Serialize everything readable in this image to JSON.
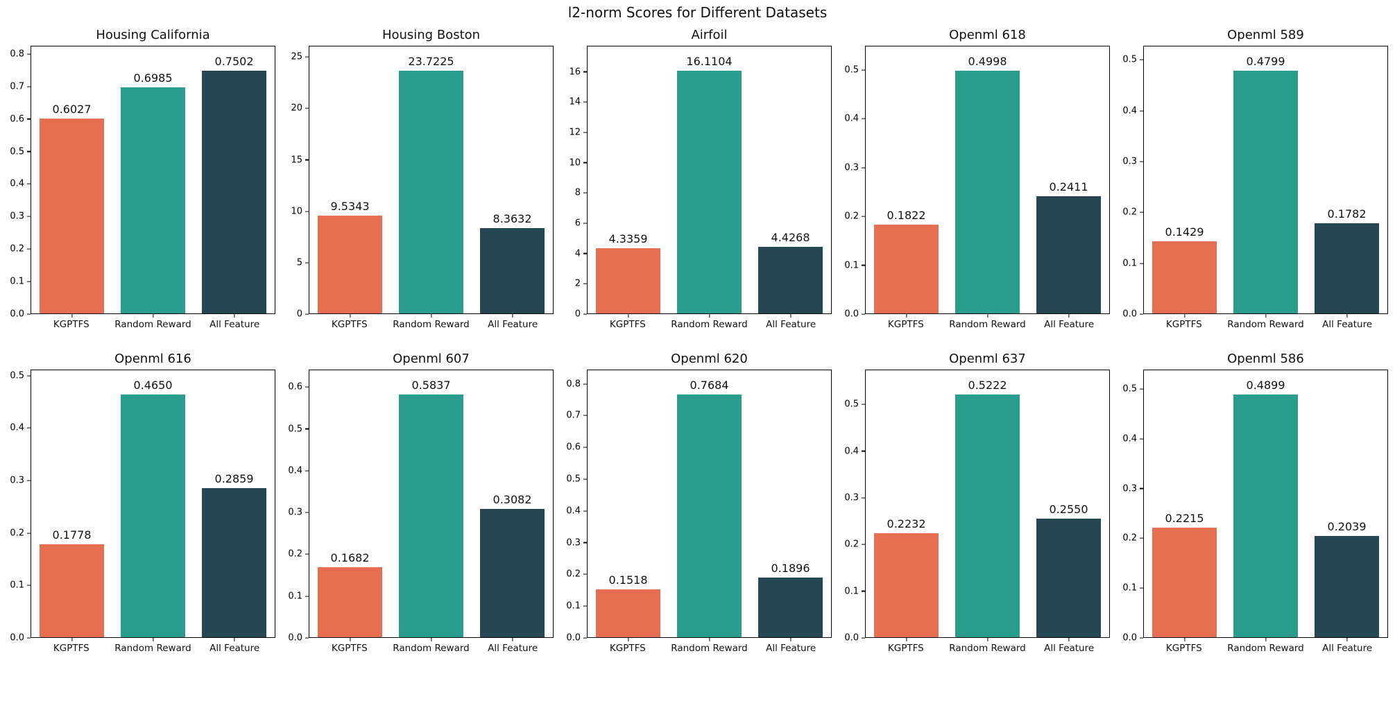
{
  "figure": {
    "title": "l2-norm Scores for Different Datasets",
    "background": "#ffffff",
    "grid": "off",
    "legend": "none"
  },
  "palette": {
    "bar_colors": [
      "#e76f51",
      "#2a9d8f",
      "#264653"
    ],
    "spine_color": "#000000",
    "text_color": "#111111"
  },
  "categories": [
    "KGPTFS",
    "Random Reward",
    "All Feature"
  ],
  "chart_data": [
    {
      "type": "bar",
      "title": "Housing California",
      "values": [
        0.6027,
        0.6985,
        0.7502
      ],
      "value_labels": [
        "0.6027",
        "0.6985",
        "0.7502"
      ],
      "yticks": [
        0.0,
        0.1,
        0.2,
        0.3,
        0.4,
        0.5,
        0.6,
        0.7,
        0.8
      ],
      "ytick_labels": [
        "0.0",
        "0.1",
        "0.2",
        "0.3",
        "0.4",
        "0.5",
        "0.6",
        "0.7",
        "0.8"
      ],
      "ylim": [
        0,
        0.8252
      ],
      "xlabel": "",
      "ylabel": ""
    },
    {
      "type": "bar",
      "title": "Housing Boston",
      "values": [
        9.5343,
        23.7225,
        8.3632
      ],
      "value_labels": [
        "9.5343",
        "23.7225",
        "8.3632"
      ],
      "yticks": [
        0,
        5,
        10,
        15,
        20,
        25
      ],
      "ytick_labels": [
        "0",
        "5",
        "10",
        "15",
        "20",
        "25"
      ],
      "ylim": [
        0,
        26.095
      ],
      "xlabel": "",
      "ylabel": ""
    },
    {
      "type": "bar",
      "title": "Airfoil",
      "values": [
        4.3359,
        16.1104,
        4.4268
      ],
      "value_labels": [
        "4.3359",
        "16.1104",
        "4.4268"
      ],
      "yticks": [
        0,
        2,
        4,
        6,
        8,
        10,
        12,
        14,
        16
      ],
      "ytick_labels": [
        "0",
        "2",
        "4",
        "6",
        "8",
        "10",
        "12",
        "14",
        "16"
      ],
      "ylim": [
        0,
        17.721
      ],
      "xlabel": "",
      "ylabel": ""
    },
    {
      "type": "bar",
      "title": "Openml 618",
      "values": [
        0.1822,
        0.4998,
        0.2411
      ],
      "value_labels": [
        "0.1822",
        "0.4998",
        "0.2411"
      ],
      "yticks": [
        0.0,
        0.1,
        0.2,
        0.3,
        0.4,
        0.5
      ],
      "ytick_labels": [
        "0.0",
        "0.1",
        "0.2",
        "0.3",
        "0.4",
        "0.5"
      ],
      "ylim": [
        0,
        0.5498
      ],
      "xlabel": "",
      "ylabel": ""
    },
    {
      "type": "bar",
      "title": "Openml 589",
      "values": [
        0.1429,
        0.4799,
        0.1782
      ],
      "value_labels": [
        "0.1429",
        "0.4799",
        "0.1782"
      ],
      "yticks": [
        0.0,
        0.1,
        0.2,
        0.3,
        0.4,
        0.5
      ],
      "ytick_labels": [
        "0.0",
        "0.1",
        "0.2",
        "0.3",
        "0.4",
        "0.5"
      ],
      "ylim": [
        0,
        0.5279
      ],
      "xlabel": "",
      "ylabel": ""
    },
    {
      "type": "bar",
      "title": "Openml 616",
      "values": [
        0.1778,
        0.465,
        0.2859
      ],
      "value_labels": [
        "0.1778",
        "0.4650",
        "0.2859"
      ],
      "yticks": [
        0.0,
        0.1,
        0.2,
        0.3,
        0.4,
        0.5
      ],
      "ytick_labels": [
        "0.0",
        "0.1",
        "0.2",
        "0.3",
        "0.4",
        "0.5"
      ],
      "ylim": [
        0,
        0.5115
      ],
      "xlabel": "",
      "ylabel": ""
    },
    {
      "type": "bar",
      "title": "Openml 607",
      "values": [
        0.1682,
        0.5837,
        0.3082
      ],
      "value_labels": [
        "0.1682",
        "0.5837",
        "0.3082"
      ],
      "yticks": [
        0.0,
        0.1,
        0.2,
        0.3,
        0.4,
        0.5,
        0.6
      ],
      "ytick_labels": [
        "0.0",
        "0.1",
        "0.2",
        "0.3",
        "0.4",
        "0.5",
        "0.6"
      ],
      "ylim": [
        0,
        0.6421
      ],
      "xlabel": "",
      "ylabel": ""
    },
    {
      "type": "bar",
      "title": "Openml 620",
      "values": [
        0.1518,
        0.7684,
        0.1896
      ],
      "value_labels": [
        "0.1518",
        "0.7684",
        "0.1896"
      ],
      "yticks": [
        0.0,
        0.1,
        0.2,
        0.3,
        0.4,
        0.5,
        0.6,
        0.7,
        0.8
      ],
      "ytick_labels": [
        "0.0",
        "0.1",
        "0.2",
        "0.3",
        "0.4",
        "0.5",
        "0.6",
        "0.7",
        "0.8"
      ],
      "ylim": [
        0,
        0.8452
      ],
      "xlabel": "",
      "ylabel": ""
    },
    {
      "type": "bar",
      "title": "Openml 637",
      "values": [
        0.2232,
        0.5222,
        0.255
      ],
      "value_labels": [
        "0.2232",
        "0.5222",
        "0.2550"
      ],
      "yticks": [
        0.0,
        0.1,
        0.2,
        0.3,
        0.4,
        0.5
      ],
      "ytick_labels": [
        "0.0",
        "0.1",
        "0.2",
        "0.3",
        "0.4",
        "0.5"
      ],
      "ylim": [
        0,
        0.5744
      ],
      "xlabel": "",
      "ylabel": ""
    },
    {
      "type": "bar",
      "title": "Openml 586",
      "values": [
        0.2215,
        0.4899,
        0.2039
      ],
      "value_labels": [
        "0.2215",
        "0.4899",
        "0.2039"
      ],
      "yticks": [
        0.0,
        0.1,
        0.2,
        0.3,
        0.4,
        0.5
      ],
      "ytick_labels": [
        "0.0",
        "0.1",
        "0.2",
        "0.3",
        "0.4",
        "0.5"
      ],
      "ylim": [
        0,
        0.5389
      ],
      "xlabel": "",
      "ylabel": ""
    }
  ]
}
